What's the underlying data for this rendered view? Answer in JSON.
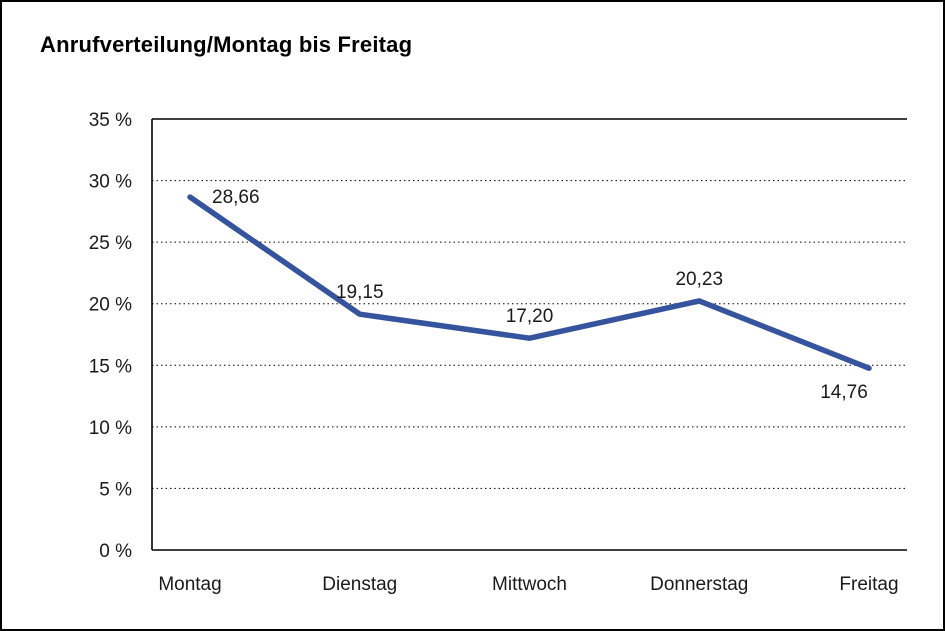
{
  "chart_data": {
    "type": "line",
    "title": "Anrufverteilung/Montag bis Freitag",
    "categories": [
      "Montag",
      "Dienstag",
      "Mittwoch",
      "Donnerstag",
      "Freitag"
    ],
    "values": [
      28.66,
      19.15,
      17.2,
      20.23,
      14.76
    ],
    "point_labels": [
      "28,66",
      "19,15",
      "17,20",
      "20,23",
      "14,76"
    ],
    "label_positions": [
      "right",
      "above",
      "above",
      "above",
      "below"
    ],
    "y_ticks": [
      {
        "value": 0,
        "label": "0 %"
      },
      {
        "value": 5,
        "label": "5 %"
      },
      {
        "value": 10,
        "label": "10 %"
      },
      {
        "value": 15,
        "label": "15 %"
      },
      {
        "value": 20,
        "label": "20 %"
      },
      {
        "value": 25,
        "label": "25 %"
      },
      {
        "value": 30,
        "label": "30 %"
      },
      {
        "value": 35,
        "label": "35 %"
      }
    ],
    "ylim": [
      0,
      35
    ],
    "xlabel": "",
    "ylabel": "",
    "grid": "dotted-horizontal",
    "legend": "none",
    "line_color": "#36549E",
    "axis_color": "#000000",
    "text_color": "#1a1a1a"
  }
}
